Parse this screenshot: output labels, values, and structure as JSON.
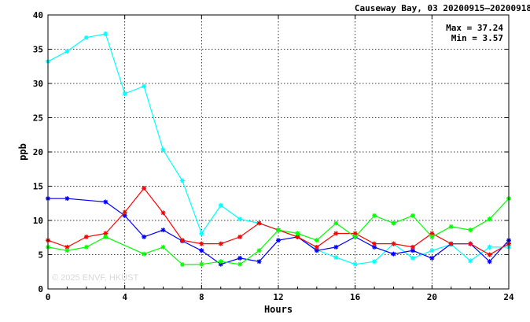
{
  "chart_data": {
    "type": "line",
    "title": "Causeway Bay, 03 20200915—20200918",
    "stats": {
      "max_label": "Max = 37.24",
      "min_label": "Min =  3.57"
    },
    "xlabel": "Hours",
    "ylabel": "ppb",
    "xlim": [
      0,
      24
    ],
    "ylim": [
      0,
      40
    ],
    "x_ticks": [
      0,
      4,
      8,
      12,
      16,
      20,
      24
    ],
    "y_ticks": [
      0,
      5,
      10,
      15,
      20,
      25,
      30,
      35,
      40
    ],
    "grid": true,
    "x": [
      0,
      1,
      2,
      3,
      4,
      5,
      6,
      7,
      8,
      9,
      10,
      11,
      12,
      13,
      14,
      15,
      16,
      17,
      18,
      19,
      20,
      21,
      22,
      23,
      24
    ],
    "series": [
      {
        "color": "#00ffff",
        "values": [
          33.2,
          34.7,
          36.7,
          37.24,
          28.5,
          29.6,
          20.3,
          15.8,
          8.1,
          12.2,
          10.2,
          9.6,
          8.6,
          7.6,
          5.7,
          4.6,
          3.6,
          4.0,
          6.6,
          4.5,
          5.6,
          6.5,
          4.1,
          6.1,
          6.1
        ]
      },
      {
        "color": "#0000ff",
        "values": [
          13.2,
          13.2,
          null,
          12.7,
          10.7,
          7.6,
          8.6,
          7.0,
          5.6,
          3.6,
          4.5,
          4.0,
          7.1,
          7.6,
          5.6,
          6.1,
          7.6,
          6.1,
          5.1,
          5.6,
          4.5,
          6.6,
          6.6,
          4.0,
          7.1
        ]
      },
      {
        "color": "#ff0000",
        "values": [
          7.1,
          6.1,
          7.6,
          8.1,
          11.2,
          14.7,
          11.1,
          7.1,
          6.6,
          6.6,
          7.6,
          9.6,
          8.6,
          7.6,
          6.1,
          8.1,
          8.1,
          6.6,
          6.6,
          6.1,
          8.1,
          6.6,
          6.6,
          5.0,
          6.6
        ]
      },
      {
        "color": "#00ff00",
        "values": [
          6.1,
          5.6,
          6.1,
          7.6,
          null,
          5.1,
          6.1,
          3.57,
          3.6,
          4.0,
          3.6,
          5.6,
          8.6,
          8.1,
          7.1,
          9.6,
          7.6,
          10.7,
          9.6,
          10.7,
          7.6,
          9.1,
          8.6,
          10.2,
          13.2
        ]
      }
    ]
  },
  "watermark": "© 2025  ENVF, HKUST",
  "axis_color": "#000000",
  "grid_color": "#000000"
}
